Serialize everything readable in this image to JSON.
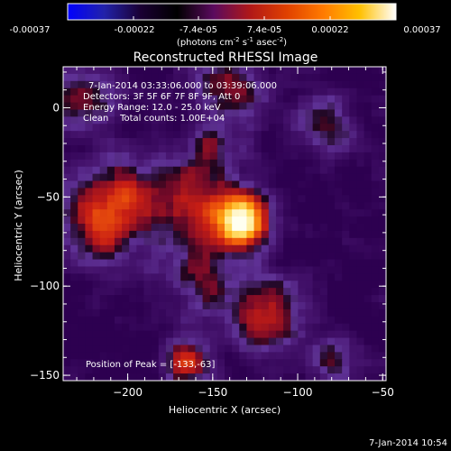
{
  "colorbar": {
    "tick_labels": [
      "-0.00037",
      "-0.00022",
      "-7.4e-05",
      "7.4e-05",
      "0.00022",
      "0.00037"
    ],
    "unit_main": "(photons cm",
    "unit_exp1": "-2",
    "unit_mid": " s",
    "unit_exp2": "-1",
    "unit_tail": " asec",
    "unit_exp3": "-2",
    "unit_close": ")",
    "stops": [
      "#0000ff",
      "#2222aa",
      "#1a0033",
      "#000000",
      "#5a0a5e",
      "#b01818",
      "#e04000",
      "#ff7a00",
      "#ffc000",
      "#ffffff"
    ]
  },
  "plot": {
    "title": "Reconstructed RHESSI Image",
    "annotation_lines": [
      "7-Jan-2014 03:33:06.000 to 03:39:06.000",
      "Detectors: 3F 5F 6F 7F 8F 9F, Att 0",
      "Energy Range: 12.0 - 25.0 keV",
      "Clean    Total counts: 1.00E+04"
    ],
    "peak_label": "Position of Peak = [-133,-63]",
    "xlabel": "Heliocentric X (arcsec)",
    "ylabel": "Heliocentric Y (arcsec)",
    "x_ticks": [
      -200,
      -150,
      -100,
      -50
    ],
    "y_ticks": [
      0,
      -50,
      -100,
      -150
    ],
    "xlim": [
      -238,
      -48
    ],
    "ylim": [
      -153,
      23
    ],
    "peak": [
      -133,
      -63
    ]
  },
  "footer": {
    "timestamp": "7-Jan-2014 10:54"
  }
}
